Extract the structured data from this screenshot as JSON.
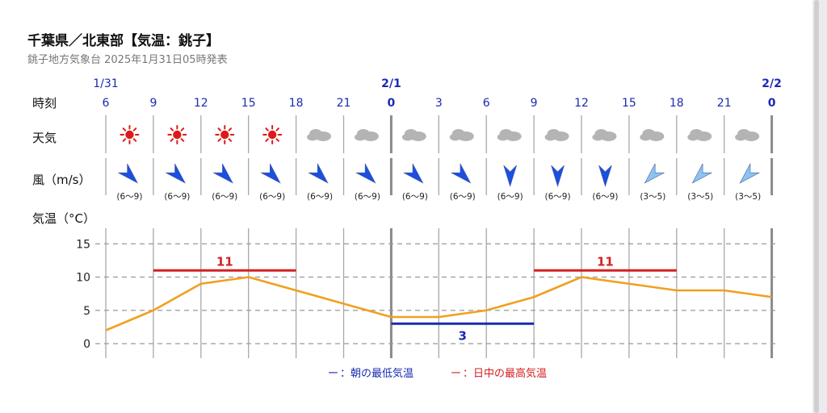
{
  "header": {
    "title": "千葉県／北東部【気温：銚子】",
    "subtitle": "銚子地方気象台 2025年1月31日05時発表"
  },
  "rows": {
    "time_label": "時刻",
    "weather_label": "天気",
    "wind_label": "風（m/s）",
    "temp_label": "気温（°C）"
  },
  "day_labels": [
    "1/31",
    "2/1",
    "2/2"
  ],
  "times": [
    "6",
    "9",
    "12",
    "15",
    "18",
    "21",
    "0",
    "3",
    "6",
    "9",
    "12",
    "15",
    "18",
    "21",
    "0"
  ],
  "day_boundary_index": [
    6,
    14
  ],
  "weather": [
    "sunny-icon",
    "sunny-icon",
    "sunny-icon",
    "sunny-icon",
    "cloudy-icon",
    "cloudy-icon",
    "cloudy-icon",
    "cloudy-icon",
    "cloudy-icon",
    "cloudy-icon",
    "cloudy-icon",
    "cloudy-icon",
    "cloudy-icon",
    "cloudy-icon"
  ],
  "wind": [
    {
      "range": "(6〜9)",
      "dir": "NW",
      "level": "strong"
    },
    {
      "range": "(6〜9)",
      "dir": "NW",
      "level": "strong"
    },
    {
      "range": "(6〜9)",
      "dir": "NW",
      "level": "strong"
    },
    {
      "range": "(6〜9)",
      "dir": "NW",
      "level": "strong"
    },
    {
      "range": "(6〜9)",
      "dir": "NW",
      "level": "strong"
    },
    {
      "range": "(6〜9)",
      "dir": "NW",
      "level": "strong"
    },
    {
      "range": "(6〜9)",
      "dir": "NW",
      "level": "strong"
    },
    {
      "range": "(6〜9)",
      "dir": "NW",
      "level": "strong"
    },
    {
      "range": "(6〜9)",
      "dir": "N",
      "level": "strong"
    },
    {
      "range": "(6〜9)",
      "dir": "N",
      "level": "strong"
    },
    {
      "range": "(6〜9)",
      "dir": "N",
      "level": "strong"
    },
    {
      "range": "(3〜5)",
      "dir": "NE",
      "level": "moderate"
    },
    {
      "range": "(3〜5)",
      "dir": "NE",
      "level": "moderate"
    },
    {
      "range": "(3〜5)",
      "dir": "NE",
      "level": "moderate"
    }
  ],
  "colors": {
    "temp_line": "#f0a020",
    "max_line": "#d42020",
    "min_line": "#1a2ab0",
    "time_text": "#1a2ab0",
    "sun": "#dd1a1a",
    "cloud": "#b4b4b4",
    "wind_strong": "#1a4fe0",
    "wind_moderate": "#8cc4f0"
  },
  "legend": {
    "min_mark": "ー",
    "min_label": "：朝の最低気温",
    "max_mark": "ー",
    "max_label": "：日中の最高気温"
  },
  "chart_data": {
    "type": "line",
    "x": [
      "1/31 6",
      "9",
      "12",
      "15",
      "18",
      "21",
      "2/1 0",
      "3",
      "6",
      "9",
      "12",
      "15",
      "18",
      "21",
      "2/2 0"
    ],
    "series": [
      {
        "values": [
          2,
          5,
          9,
          10,
          8,
          6,
          4,
          4,
          5,
          7,
          10,
          9,
          8,
          8,
          7
        ]
      }
    ],
    "max_temps": [
      {
        "value": 11,
        "label": "11",
        "from_index": 1,
        "to_index": 4
      },
      {
        "value": 11,
        "label": "11",
        "from_index": 9,
        "to_index": 12
      }
    ],
    "min_temps": [
      {
        "value": 3,
        "label": "3",
        "from_index": 6,
        "to_index": 9
      }
    ],
    "ylabel": "気温（°C）",
    "yticks": [
      0,
      5,
      10,
      15
    ],
    "ylim": [
      -1,
      17
    ],
    "grid": true,
    "legend_position": "bottom"
  }
}
